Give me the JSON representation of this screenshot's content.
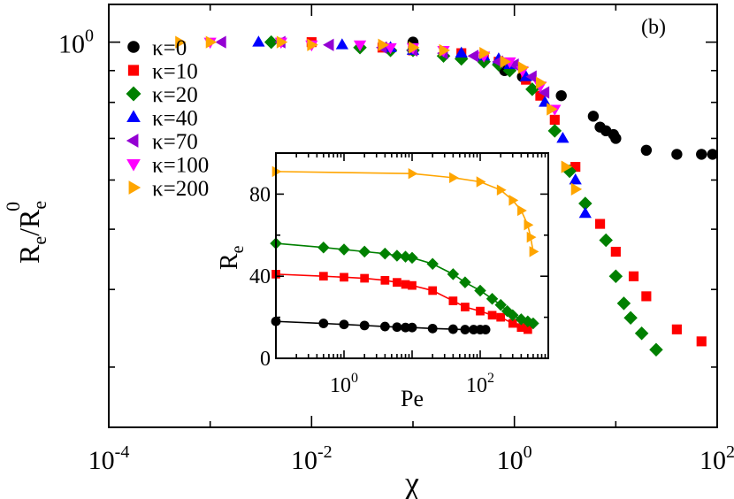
{
  "chart_data": {
    "main": {
      "type": "scatter",
      "panel_label": "(b)",
      "xlabel": "χ",
      "ylabel": {
        "base": "R",
        "sub1": "e",
        "mid": "/R",
        "sub2": "e",
        "sup": "0"
      },
      "xscale": "log",
      "yscale": "log",
      "xlim": [
        0.0001,
        100
      ],
      "ylim": [
        0.24,
        1.15
      ],
      "x_ticks": [
        {
          "value": 0.0001,
          "base": "10",
          "exp": "-4"
        },
        {
          "value": 0.01,
          "base": "10",
          "exp": "-2"
        },
        {
          "value": 1,
          "base": "10",
          "exp": "0"
        },
        {
          "value": 100,
          "base": "10",
          "exp": "2"
        }
      ],
      "y_ticks": [
        {
          "value": 1,
          "base": "10",
          "exp": "0"
        }
      ],
      "legend_position": "top-left",
      "series": [
        {
          "name": "κ=0",
          "color": "#000000",
          "marker": "circle",
          "points": [
            [
              0.1,
              1.0
            ],
            [
              0.8,
              0.9
            ],
            [
              1.2,
              0.88
            ],
            [
              2.9,
              0.82
            ],
            [
              6,
              0.76
            ],
            [
              7,
              0.73
            ],
            [
              8,
              0.72
            ],
            [
              9.5,
              0.71
            ],
            [
              10,
              0.7
            ],
            [
              20,
              0.67
            ],
            [
              40,
              0.66
            ],
            [
              70,
              0.66
            ],
            [
              90,
              0.66
            ]
          ]
        },
        {
          "name": "κ=10",
          "color": "#ff0000",
          "marker": "square",
          "points": [
            [
              0.01,
              1.0
            ],
            [
              0.05,
              0.98
            ],
            [
              0.1,
              0.97
            ],
            [
              0.3,
              0.96
            ],
            [
              0.5,
              0.94
            ],
            [
              0.7,
              0.93
            ],
            [
              0.9,
              0.91
            ],
            [
              1.3,
              0.87
            ],
            [
              1.8,
              0.82
            ],
            [
              2.5,
              0.75
            ],
            [
              4,
              0.63
            ],
            [
              7,
              0.51
            ],
            [
              10,
              0.46
            ],
            [
              15,
              0.42
            ],
            [
              20,
              0.39
            ],
            [
              40,
              0.345
            ],
            [
              70,
              0.33
            ]
          ]
        },
        {
          "name": "κ=20",
          "color": "#008000",
          "marker": "diamond",
          "points": [
            [
              0.004,
              1.0
            ],
            [
              0.03,
              0.98
            ],
            [
              0.06,
              0.97
            ],
            [
              0.1,
              0.97
            ],
            [
              0.2,
              0.95
            ],
            [
              0.3,
              0.94
            ],
            [
              0.5,
              0.93
            ],
            [
              0.7,
              0.92
            ],
            [
              0.9,
              0.9
            ],
            [
              1.5,
              0.84
            ],
            [
              2.5,
              0.72
            ],
            [
              3.5,
              0.62
            ],
            [
              5,
              0.55
            ],
            [
              8,
              0.48
            ],
            [
              10,
              0.42
            ],
            [
              12,
              0.38
            ],
            [
              14,
              0.36
            ],
            [
              18,
              0.34
            ],
            [
              25,
              0.32
            ]
          ]
        },
        {
          "name": "κ=40",
          "color": "#0000ff",
          "marker": "triangle-up",
          "points": [
            [
              0.003,
              1.0
            ],
            [
              0.02,
              0.99
            ],
            [
              0.06,
              0.98
            ],
            [
              0.1,
              0.97
            ],
            [
              0.3,
              0.96
            ],
            [
              0.5,
              0.95
            ],
            [
              0.7,
              0.94
            ],
            [
              0.9,
              0.92
            ],
            [
              1.3,
              0.88
            ],
            [
              2,
              0.8
            ],
            [
              3,
              0.7
            ],
            [
              4,
              0.6
            ],
            [
              5,
              0.53
            ]
          ]
        },
        {
          "name": "κ=70",
          "color": "#9400d3",
          "marker": "triangle-left",
          "points": [
            [
              0.0013,
              1.0
            ],
            [
              0.005,
              1.0
            ],
            [
              0.015,
              0.99
            ],
            [
              0.05,
              0.98
            ],
            [
              0.1,
              0.97
            ],
            [
              0.2,
              0.96
            ],
            [
              0.4,
              0.95
            ],
            [
              0.7,
              0.93
            ],
            [
              1.0,
              0.92
            ],
            [
              1.5,
              0.88
            ],
            [
              2,
              0.83
            ]
          ]
        },
        {
          "name": "κ=100",
          "color": "#ff00ff",
          "marker": "triangle-down",
          "points": [
            [
              0.001,
              1.0
            ],
            [
              0.005,
              1.0
            ],
            [
              0.01,
              0.99
            ],
            [
              0.03,
              0.99
            ],
            [
              0.06,
              0.98
            ],
            [
              0.1,
              0.98
            ],
            [
              0.2,
              0.97
            ],
            [
              0.5,
              0.95
            ],
            [
              0.9,
              0.93
            ],
            [
              1.2,
              0.9
            ],
            [
              1.8,
              0.85
            ],
            [
              2.5,
              0.78
            ]
          ]
        },
        {
          "name": "κ=200",
          "color": "#ffa500",
          "marker": "triangle-right",
          "points": [
            [
              0.0005,
              1.0
            ],
            [
              0.001,
              1.0
            ],
            [
              0.005,
              1.0
            ],
            [
              0.01,
              0.99
            ],
            [
              0.05,
              0.99
            ],
            [
              0.1,
              0.98
            ],
            [
              0.2,
              0.97
            ],
            [
              0.5,
              0.96
            ],
            [
              0.8,
              0.93
            ],
            [
              1.2,
              0.91
            ],
            [
              1.8,
              0.86
            ],
            [
              2.3,
              0.78
            ],
            [
              3.2,
              0.63
            ],
            [
              4,
              0.58
            ]
          ]
        }
      ]
    },
    "inset": {
      "type": "line",
      "xlabel": "Pe",
      "ylabel": {
        "base": "R",
        "sub": "e"
      },
      "xscale": "log",
      "xlim": [
        0.1,
        1000
      ],
      "ylim": [
        0,
        100
      ],
      "x_ticks": [
        {
          "value": 1,
          "base": "10",
          "exp": "0"
        },
        {
          "value": 100,
          "base": "10",
          "exp": "2"
        }
      ],
      "y_ticks": [
        {
          "value": 0,
          "label": "0"
        },
        {
          "value": 40,
          "label": "40"
        },
        {
          "value": 80,
          "label": "80"
        }
      ],
      "series": [
        {
          "name": "κ=0",
          "color": "#000000",
          "marker": "circle",
          "points": [
            [
              0.1,
              18
            ],
            [
              0.5,
              17
            ],
            [
              1,
              16.5
            ],
            [
              2,
              16
            ],
            [
              4,
              15.5
            ],
            [
              6,
              15.2
            ],
            [
              8,
              15
            ],
            [
              10,
              15
            ],
            [
              20,
              14.5
            ],
            [
              40,
              14.2
            ],
            [
              60,
              14
            ],
            [
              80,
              14
            ],
            [
              100,
              14
            ],
            [
              120,
              14
            ]
          ]
        },
        {
          "name": "κ=10",
          "color": "#ff0000",
          "marker": "square",
          "points": [
            [
              0.1,
              41
            ],
            [
              0.5,
              40
            ],
            [
              1,
              39.5
            ],
            [
              2,
              39
            ],
            [
              4,
              38
            ],
            [
              6,
              37
            ],
            [
              8,
              36
            ],
            [
              10,
              35.5
            ],
            [
              20,
              33
            ],
            [
              40,
              28
            ],
            [
              60,
              25
            ],
            [
              100,
              23
            ],
            [
              150,
              21
            ],
            [
              200,
              20
            ],
            [
              300,
              17
            ],
            [
              400,
              15
            ],
            [
              500,
              14
            ]
          ]
        },
        {
          "name": "κ=20",
          "color": "#008000",
          "marker": "diamond",
          "points": [
            [
              0.1,
              56
            ],
            [
              0.5,
              54
            ],
            [
              1,
              53
            ],
            [
              2,
              52
            ],
            [
              4,
              51
            ],
            [
              6,
              50
            ],
            [
              8,
              49.5
            ],
            [
              10,
              49
            ],
            [
              20,
              46
            ],
            [
              40,
              41
            ],
            [
              60,
              37
            ],
            [
              100,
              33
            ],
            [
              150,
              29
            ],
            [
              200,
              26
            ],
            [
              250,
              23
            ],
            [
              300,
              21
            ],
            [
              400,
              19
            ],
            [
              500,
              18
            ],
            [
              600,
              17
            ]
          ]
        },
        {
          "name": "κ=200",
          "color": "#ffa500",
          "marker": "triangle-right",
          "points": [
            [
              0.1,
              91
            ],
            [
              10,
              90
            ],
            [
              40,
              88
            ],
            [
              100,
              86
            ],
            [
              200,
              82
            ],
            [
              300,
              77
            ],
            [
              400,
              72
            ],
            [
              500,
              65
            ],
            [
              550,
              59
            ],
            [
              600,
              52
            ]
          ]
        }
      ]
    }
  }
}
